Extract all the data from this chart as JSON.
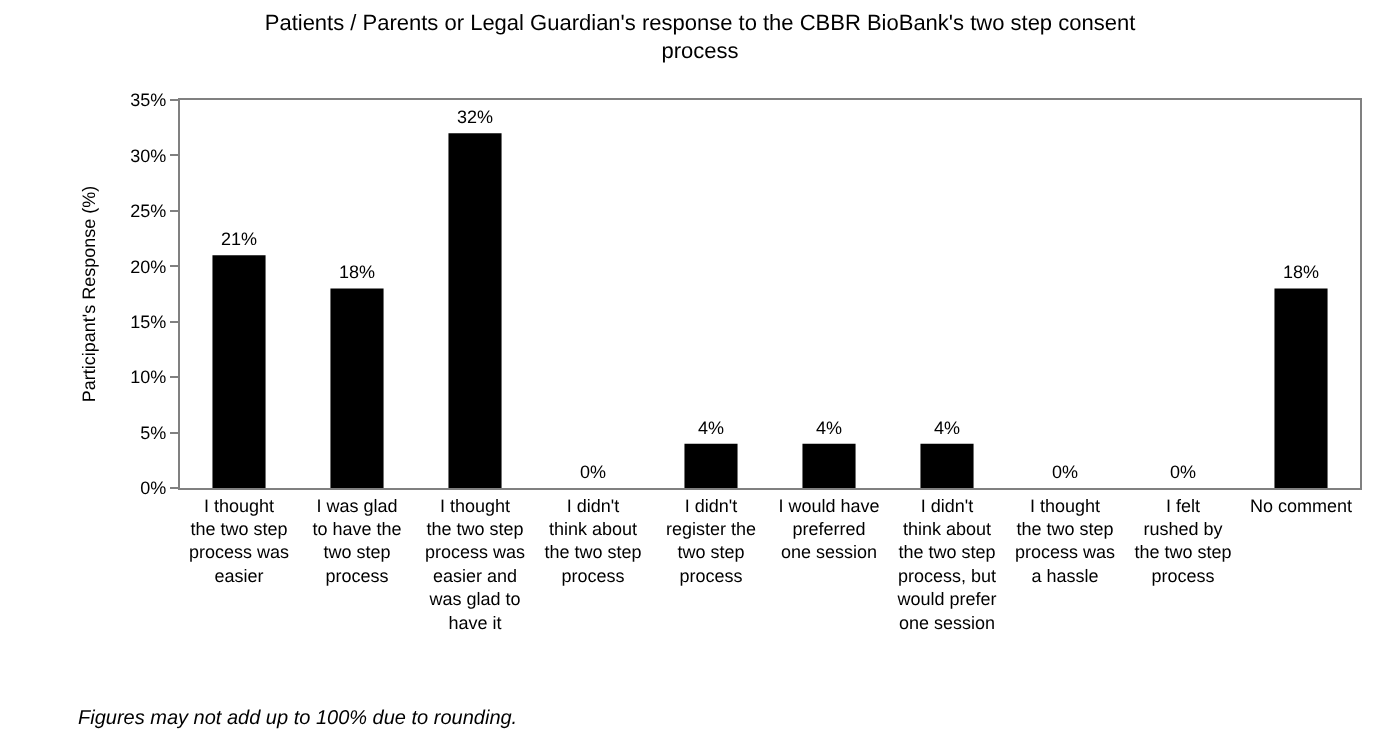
{
  "chart_data": {
    "type": "bar",
    "title": "Patients / Parents or Legal Guardian's response to the CBBR BioBank's two step consent process",
    "ylabel": "Participant's Response (%)",
    "categories": [
      "I thought the two step process was easier",
      "I was glad to have the two step process",
      "I thought the two step process was easier and was glad to have it",
      "I didn't think about the two step process",
      "I didn't register the two step process",
      "I would have preferred one session",
      "I didn't think about the two step process, but would prefer one session",
      "I thought the two step process was a hassle",
      "I felt rushed by the two step process",
      "No comment"
    ],
    "values": [
      21,
      18,
      32,
      0,
      4,
      4,
      4,
      0,
      0,
      18
    ],
    "value_labels": [
      "21%",
      "18%",
      "32%",
      "0%",
      "4%",
      "4%",
      "4%",
      "0%",
      "0%",
      "18%"
    ],
    "color": "#000000",
    "ylim": [
      0,
      35
    ],
    "yticks": [
      {
        "value": 0,
        "label": "0%"
      },
      {
        "value": 5,
        "label": "5%"
      },
      {
        "value": 10,
        "label": "10%"
      },
      {
        "value": 15,
        "label": "15%"
      },
      {
        "value": 20,
        "label": "20%"
      },
      {
        "value": 25,
        "label": "25%"
      },
      {
        "value": 30,
        "label": "30%"
      },
      {
        "value": 35,
        "label": "35%"
      }
    ],
    "legend": false,
    "annotations": [
      "Figures may not add up to 100% due to rounding."
    ]
  }
}
